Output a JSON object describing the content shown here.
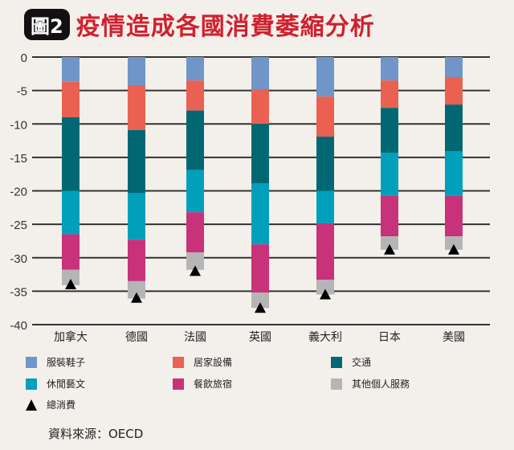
{
  "title_badge": "圖2",
  "title": "疫情造成各國消費萎縮分析",
  "source": "資料來源：OECD",
  "chart_data": {
    "type": "bar",
    "stacked": true,
    "title": "疫情造成各國消費萎縮分析",
    "xlabel": "",
    "ylabel": "",
    "ylim": [
      -40,
      0
    ],
    "yticks": [
      0,
      -5,
      -10,
      -15,
      -20,
      -25,
      -30,
      -35,
      -40
    ],
    "grid": true,
    "legend_position": "bottom",
    "categories": [
      "加拿大",
      "德國",
      "法國",
      "英國",
      "義大利",
      "日本",
      "美國"
    ],
    "series": [
      {
        "name": "服裝鞋子",
        "color": "#7096c9",
        "values": [
          -3.7,
          -4.2,
          -3.5,
          -4.9,
          -5.9,
          -3.5,
          -3.0
        ]
      },
      {
        "name": "居家設備",
        "color": "#ea6152",
        "values": [
          -5.3,
          -6.7,
          -4.5,
          -5.1,
          -6.0,
          -4.1,
          -4.1
        ]
      },
      {
        "name": "交通",
        "color": "#016873",
        "values": [
          -11.0,
          -9.4,
          -8.9,
          -8.9,
          -8.1,
          -6.7,
          -7.0
        ]
      },
      {
        "name": "休閒藝文",
        "color": "#00a0bc",
        "values": [
          -6.5,
          -7.0,
          -6.3,
          -9.1,
          -4.9,
          -6.4,
          -6.6
        ]
      },
      {
        "name": "餐飲旅宿",
        "color": "#c8327a",
        "values": [
          -5.3,
          -6.2,
          -6.0,
          -7.2,
          -8.4,
          -6.1,
          -6.1
        ]
      },
      {
        "name": "其他個人服務",
        "color": "#b5b5b5",
        "values": [
          -2.3,
          -2.6,
          -2.6,
          -2.3,
          -2.2,
          -2.0,
          -2.0
        ]
      }
    ],
    "total": {
      "name": "總消費",
      "marker": "triangle",
      "values": [
        -34.0,
        -36.0,
        -32.0,
        -37.5,
        -35.5,
        -28.8,
        -28.8
      ]
    }
  }
}
